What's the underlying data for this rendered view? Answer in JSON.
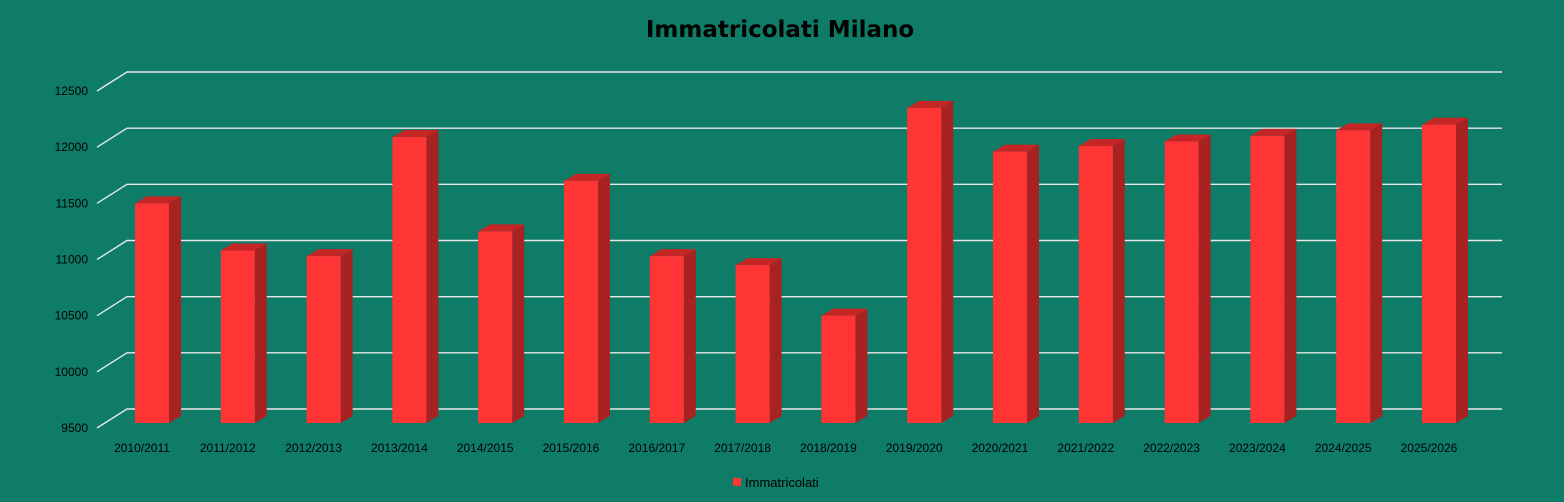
{
  "chart_data": {
    "type": "bar",
    "title": "Immatricolati Milano",
    "xlabel": "",
    "ylabel": "",
    "categories": [
      "2010/2011",
      "2011/2012",
      "2012/2013",
      "2013/2014",
      "2014/2015",
      "2015/2016",
      "2016/2017",
      "2017/2018",
      "2018/2019",
      "2019/2020",
      "2020/2021",
      "2021/2022",
      "2022/2023",
      "2023/2024",
      "2024/2025",
      "2025/2026"
    ],
    "series": [
      {
        "name": "Immatricolati",
        "values": [
          11500,
          11080,
          11030,
          12090,
          11250,
          11700,
          11030,
          10950,
          10500,
          12350,
          11960,
          12010,
          12050,
          12100,
          12150,
          12200
        ]
      }
    ],
    "ylim": [
      9500,
      12500
    ],
    "yticks": [
      9500,
      10000,
      10500,
      11000,
      11500,
      12000,
      12500
    ],
    "grid": true,
    "legend_position": "bottom",
    "colors": {
      "background": "#0e7c66",
      "bar_front": "#ff3535",
      "bar_side": "#a82222",
      "bar_top": "#c42626",
      "grid": "#e8e8e8"
    }
  }
}
